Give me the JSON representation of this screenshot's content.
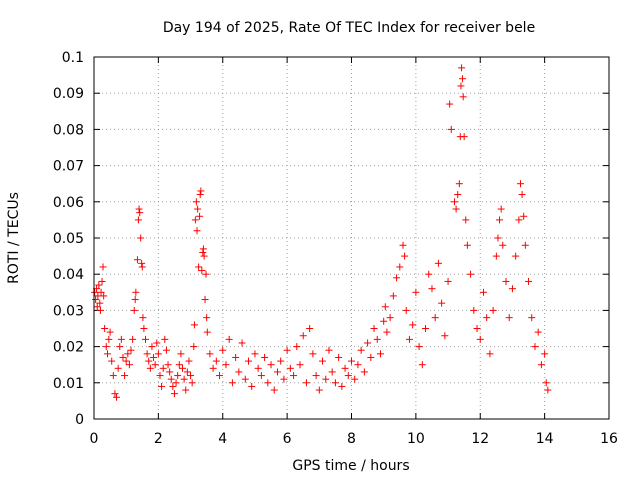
{
  "chart_data": {
    "type": "scatter",
    "title": "Day 194 of 2025, Rate Of TEC Index for receiver bele",
    "xlabel": "GPS time / hours",
    "ylabel": "ROTI / TECUs",
    "xlim": [
      0,
      16
    ],
    "ylim": [
      0,
      0.1
    ],
    "xticks": [
      "0",
      "2",
      "4",
      "6",
      "8",
      "10",
      "12",
      "14",
      "16"
    ],
    "yticks": [
      "0",
      "0.01",
      "0.02",
      "0.03",
      "0.04",
      "0.05",
      "0.06",
      "0.07",
      "0.08",
      "0.09",
      "0.1"
    ],
    "grid": true,
    "marker": "+",
    "series": [
      {
        "color": "#ff0000",
        "points": [
          [
            0.02,
            0.035
          ],
          [
            0.05,
            0.033
          ],
          [
            0.08,
            0.036
          ],
          [
            0.1,
            0.031
          ],
          [
            0.12,
            0.034
          ],
          [
            0.15,
            0.037
          ],
          [
            0.18,
            0.032
          ],
          [
            0.2,
            0.03
          ],
          [
            0.22,
            0.035
          ],
          [
            0.25,
            0.038
          ],
          [
            0.28,
            0.042
          ],
          [
            0.3,
            0.034
          ],
          [
            0.33,
            0.025
          ],
          [
            0.38,
            0.02
          ],
          [
            0.42,
            0.018
          ],
          [
            0.46,
            0.022
          ],
          [
            0.5,
            0.024
          ],
          [
            0.55,
            0.016
          ],
          [
            0.6,
            0.012
          ],
          [
            0.65,
            0.007
          ],
          [
            0.7,
            0.006
          ],
          [
            0.75,
            0.014
          ],
          [
            0.8,
            0.02
          ],
          [
            0.85,
            0.022
          ],
          [
            0.9,
            0.017
          ],
          [
            0.95,
            0.012
          ],
          [
            1.0,
            0.016
          ],
          [
            1.05,
            0.018
          ],
          [
            1.1,
            0.015
          ],
          [
            1.15,
            0.019
          ],
          [
            1.2,
            0.022
          ],
          [
            1.25,
            0.03
          ],
          [
            1.28,
            0.033
          ],
          [
            1.3,
            0.035
          ],
          [
            1.35,
            0.044
          ],
          [
            1.38,
            0.055
          ],
          [
            1.4,
            0.058
          ],
          [
            1.42,
            0.057
          ],
          [
            1.45,
            0.05
          ],
          [
            1.48,
            0.043
          ],
          [
            1.5,
            0.042
          ],
          [
            1.52,
            0.028
          ],
          [
            1.55,
            0.025
          ],
          [
            1.6,
            0.022
          ],
          [
            1.65,
            0.018
          ],
          [
            1.7,
            0.016
          ],
          [
            1.75,
            0.014
          ],
          [
            1.8,
            0.02
          ],
          [
            1.85,
            0.017
          ],
          [
            1.9,
            0.015
          ],
          [
            1.95,
            0.021
          ],
          [
            2.0,
            0.018
          ],
          [
            2.05,
            0.012
          ],
          [
            2.1,
            0.009
          ],
          [
            2.15,
            0.014
          ],
          [
            2.2,
            0.022
          ],
          [
            2.25,
            0.019
          ],
          [
            2.3,
            0.015
          ],
          [
            2.35,
            0.013
          ],
          [
            2.4,
            0.011
          ],
          [
            2.45,
            0.009
          ],
          [
            2.5,
            0.007
          ],
          [
            2.55,
            0.01
          ],
          [
            2.6,
            0.012
          ],
          [
            2.65,
            0.015
          ],
          [
            2.7,
            0.018
          ],
          [
            2.75,
            0.014
          ],
          [
            2.8,
            0.011
          ],
          [
            2.85,
            0.008
          ],
          [
            2.9,
            0.013
          ],
          [
            2.95,
            0.016
          ],
          [
            3.0,
            0.012
          ],
          [
            3.05,
            0.01
          ],
          [
            3.1,
            0.02
          ],
          [
            3.12,
            0.026
          ],
          [
            3.15,
            0.055
          ],
          [
            3.18,
            0.06
          ],
          [
            3.2,
            0.052
          ],
          [
            3.22,
            0.058
          ],
          [
            3.25,
            0.042
          ],
          [
            3.28,
            0.056
          ],
          [
            3.3,
            0.062
          ],
          [
            3.32,
            0.063
          ],
          [
            3.35,
            0.041
          ],
          [
            3.38,
            0.046
          ],
          [
            3.4,
            0.047
          ],
          [
            3.42,
            0.045
          ],
          [
            3.45,
            0.033
          ],
          [
            3.48,
            0.04
          ],
          [
            3.5,
            0.028
          ],
          [
            3.52,
            0.024
          ],
          [
            3.6,
            0.018
          ],
          [
            3.7,
            0.014
          ],
          [
            3.8,
            0.016
          ],
          [
            3.9,
            0.012
          ],
          [
            4.0,
            0.019
          ],
          [
            4.1,
            0.015
          ],
          [
            4.2,
            0.022
          ],
          [
            4.3,
            0.01
          ],
          [
            4.4,
            0.017
          ],
          [
            4.5,
            0.013
          ],
          [
            4.6,
            0.021
          ],
          [
            4.7,
            0.011
          ],
          [
            4.8,
            0.016
          ],
          [
            4.9,
            0.009
          ],
          [
            5.0,
            0.018
          ],
          [
            5.1,
            0.014
          ],
          [
            5.2,
            0.012
          ],
          [
            5.3,
            0.017
          ],
          [
            5.4,
            0.01
          ],
          [
            5.5,
            0.015
          ],
          [
            5.6,
            0.008
          ],
          [
            5.7,
            0.013
          ],
          [
            5.8,
            0.016
          ],
          [
            5.9,
            0.011
          ],
          [
            6.0,
            0.019
          ],
          [
            6.1,
            0.014
          ],
          [
            6.2,
            0.012
          ],
          [
            6.3,
            0.02
          ],
          [
            6.4,
            0.015
          ],
          [
            6.5,
            0.023
          ],
          [
            6.6,
            0.01
          ],
          [
            6.7,
            0.025
          ],
          [
            6.8,
            0.018
          ],
          [
            6.9,
            0.012
          ],
          [
            7.0,
            0.008
          ],
          [
            7.1,
            0.016
          ],
          [
            7.2,
            0.011
          ],
          [
            7.3,
            0.019
          ],
          [
            7.4,
            0.013
          ],
          [
            7.5,
            0.01
          ],
          [
            7.6,
            0.017
          ],
          [
            7.7,
            0.009
          ],
          [
            7.8,
            0.014
          ],
          [
            7.9,
            0.012
          ],
          [
            8.0,
            0.016
          ],
          [
            8.1,
            0.011
          ],
          [
            8.2,
            0.015
          ],
          [
            8.3,
            0.019
          ],
          [
            8.4,
            0.013
          ],
          [
            8.5,
            0.021
          ],
          [
            8.6,
            0.017
          ],
          [
            8.7,
            0.025
          ],
          [
            8.8,
            0.022
          ],
          [
            8.9,
            0.018
          ],
          [
            9.0,
            0.027
          ],
          [
            9.05,
            0.031
          ],
          [
            9.1,
            0.024
          ],
          [
            9.2,
            0.028
          ],
          [
            9.3,
            0.034
          ],
          [
            9.4,
            0.039
          ],
          [
            9.5,
            0.042
          ],
          [
            9.6,
            0.048
          ],
          [
            9.65,
            0.045
          ],
          [
            9.7,
            0.03
          ],
          [
            9.8,
            0.022
          ],
          [
            9.9,
            0.026
          ],
          [
            10.0,
            0.035
          ],
          [
            10.1,
            0.02
          ],
          [
            10.2,
            0.015
          ],
          [
            10.3,
            0.025
          ],
          [
            10.4,
            0.04
          ],
          [
            10.5,
            0.036
          ],
          [
            10.6,
            0.028
          ],
          [
            10.7,
            0.043
          ],
          [
            10.8,
            0.032
          ],
          [
            10.9,
            0.023
          ],
          [
            11.0,
            0.038
          ],
          [
            11.05,
            0.087
          ],
          [
            11.1,
            0.08
          ],
          [
            11.2,
            0.06
          ],
          [
            11.25,
            0.058
          ],
          [
            11.3,
            0.062
          ],
          [
            11.35,
            0.065
          ],
          [
            11.38,
            0.078
          ],
          [
            11.4,
            0.092
          ],
          [
            11.42,
            0.097
          ],
          [
            11.45,
            0.094
          ],
          [
            11.47,
            0.089
          ],
          [
            11.5,
            0.078
          ],
          [
            11.55,
            0.055
          ],
          [
            11.6,
            0.048
          ],
          [
            11.7,
            0.04
          ],
          [
            11.8,
            0.03
          ],
          [
            11.9,
            0.025
          ],
          [
            12.0,
            0.022
          ],
          [
            12.1,
            0.035
          ],
          [
            12.2,
            0.028
          ],
          [
            12.3,
            0.018
          ],
          [
            12.4,
            0.03
          ],
          [
            12.5,
            0.045
          ],
          [
            12.55,
            0.05
          ],
          [
            12.6,
            0.055
          ],
          [
            12.65,
            0.058
          ],
          [
            12.7,
            0.048
          ],
          [
            12.8,
            0.038
          ],
          [
            12.9,
            0.028
          ],
          [
            13.0,
            0.036
          ],
          [
            13.1,
            0.045
          ],
          [
            13.2,
            0.055
          ],
          [
            13.25,
            0.065
          ],
          [
            13.3,
            0.062
          ],
          [
            13.35,
            0.056
          ],
          [
            13.4,
            0.048
          ],
          [
            13.5,
            0.038
          ],
          [
            13.6,
            0.028
          ],
          [
            13.7,
            0.02
          ],
          [
            13.8,
            0.024
          ],
          [
            13.9,
            0.015
          ],
          [
            14.0,
            0.018
          ],
          [
            14.05,
            0.01
          ],
          [
            14.1,
            0.008
          ]
        ]
      }
    ]
  }
}
